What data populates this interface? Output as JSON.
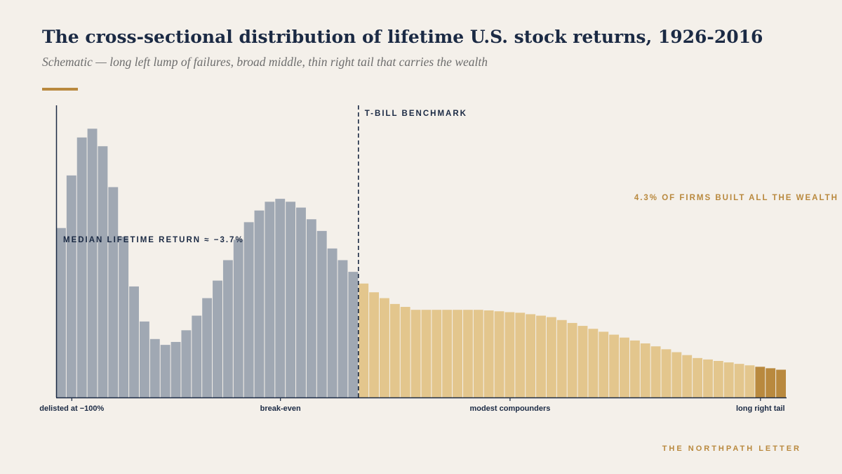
{
  "header": {
    "title": "The cross-sectional distribution of lifetime U.S. stock returns, 1926-2016",
    "subtitle": "Schematic — long left lump of failures, broad middle, thin right tail that carries the wealth"
  },
  "footer": {
    "brand": "THE NORTHPATH LETTER"
  },
  "colors": {
    "background": "#f4f0ea",
    "loss": "#a0a8b3",
    "gain": "#e3c68d",
    "tail": "#b9893e",
    "ink": "#1b2a44",
    "accent": "#b9893e"
  },
  "chart_data": {
    "type": "bar",
    "ylim": [
      0,
      100
    ],
    "grid": false,
    "benchmark_index": 29,
    "tail_start_index": 67,
    "values": [
      58,
      76,
      89,
      92,
      86,
      72,
      55,
      38,
      26,
      20,
      18,
      19,
      23,
      28,
      34,
      40,
      47,
      54,
      60,
      64,
      67,
      68,
      67,
      65,
      61,
      57,
      51,
      47,
      43,
      39,
      36,
      34,
      32,
      31,
      30,
      30,
      30,
      30,
      30,
      30,
      30,
      29.8,
      29.5,
      29.2,
      29,
      28.5,
      28,
      27.5,
      26.5,
      25.5,
      24.5,
      23.5,
      22.5,
      21.5,
      20.5,
      19.5,
      18.5,
      17.5,
      16.5,
      15.5,
      14.5,
      13.5,
      13,
      12.5,
      12,
      11.5,
      11,
      10.5,
      10,
      9.5
    ],
    "axis_labels": [
      {
        "text": "delisted at −100%",
        "index": 1
      },
      {
        "text": "break-even",
        "index": 21
      },
      {
        "text": "modest compounders",
        "index": 43
      },
      {
        "text": "long right tail",
        "index": 67
      }
    ],
    "annotations": {
      "median": "MEDIAN LIFETIME RETURN ≈ −3.7%",
      "benchmark": "T-BILL BENCHMARK",
      "tail": "4.3% OF FIRMS BUILT ALL THE WEALTH"
    }
  }
}
